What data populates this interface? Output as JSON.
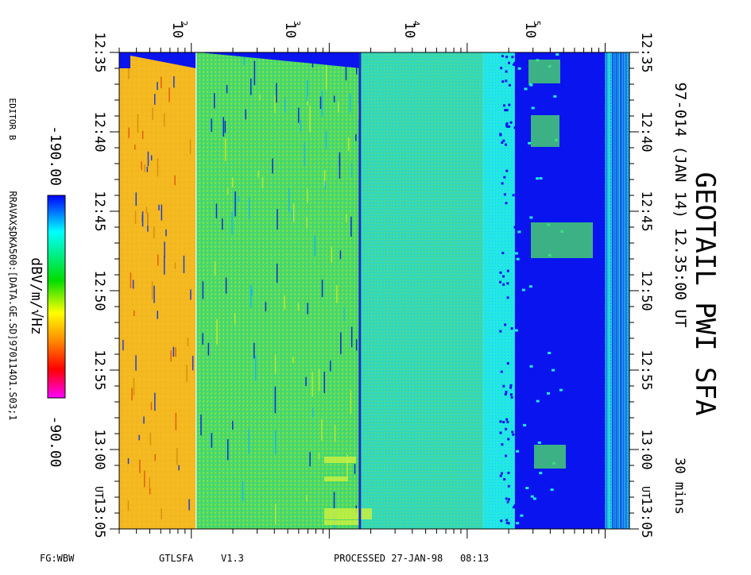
{
  "chart_data": {
    "type": "heatmap",
    "title": "GEOTAIL PWI SFA",
    "subtitle": "97-014 (JAN 14) 12.35:00 UT",
    "duration_label": "30 mins",
    "x_axis": {
      "scale": "log",
      "range_hz": [
        30,
        150000
      ],
      "ticks": [
        {
          "base": "10",
          "exp": "2",
          "value": 100
        },
        {
          "base": "10",
          "exp": "3",
          "value": 1000
        },
        {
          "base": "10",
          "exp": "4",
          "value": 10000
        },
        {
          "base": "10",
          "exp": "5",
          "value": 100000
        }
      ]
    },
    "y_axis": {
      "range": [
        "12:35",
        "13:05"
      ],
      "ticks": [
        "12:35",
        "12:40",
        "12:45",
        "12:50",
        "12:55",
        "13:00",
        "13:05"
      ],
      "ut_label": "UT"
    },
    "band_edges_hz": [
      100,
      1000,
      10000,
      100000
    ],
    "colorbar": {
      "label": "dBV/m/√Hz",
      "min_label": "-190.00",
      "max_label": "-90.00",
      "min": -190,
      "max": -90,
      "colors": [
        "#0000ff",
        "#00ffff",
        "#00dd00",
        "#ffff00",
        "#ff8800",
        "#ff0000",
        "#ff00ff"
      ]
    },
    "side_text": {
      "editor": "EDITOR B",
      "file": "RRAVAX$DKA500:[DATA.GE.SD]970114O1.S03;1"
    }
  },
  "footer": {
    "left": "FG:WBW",
    "program": "GTLSFA",
    "version": "V1.3",
    "processed": "PROCESSED 27-JAN-98   08:13"
  }
}
